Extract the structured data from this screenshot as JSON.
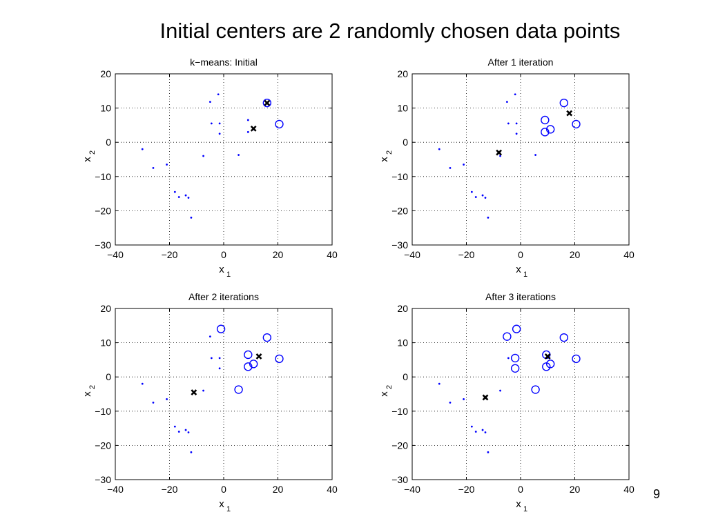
{
  "slide": {
    "title": "Initial centers are 2 randomly chosen data points",
    "page_number": "9"
  },
  "colors": {
    "points": "#0000ff",
    "centers": "#000000",
    "grid": "#000000",
    "background": "#ffffff"
  },
  "chart_data": [
    {
      "type": "scatter",
      "title": "k−means: Initial",
      "xlabel": "x",
      "xlabel_sub": "1",
      "ylabel": "x",
      "ylabel_sub": "2",
      "xlim": [
        -40,
        40
      ],
      "ylim": [
        -30,
        20
      ],
      "xticks": [
        -40,
        -20,
        0,
        20,
        40
      ],
      "yticks": [
        -30,
        -20,
        -10,
        0,
        10,
        20
      ],
      "grid": true,
      "points": [
        [
          -30,
          -2
        ],
        [
          -26,
          -7.5
        ],
        [
          -21,
          -6.5
        ],
        [
          -18,
          -14.5
        ],
        [
          -16.5,
          -16
        ],
        [
          -14,
          -15.5
        ],
        [
          -13,
          -16.2
        ],
        [
          -12,
          -22
        ],
        [
          -7.5,
          -4
        ],
        [
          -5,
          11.8
        ],
        [
          -4.5,
          5.5
        ],
        [
          -2,
          14
        ],
        [
          -1.5,
          5.5
        ],
        [
          -1.5,
          2.5
        ],
        [
          5.5,
          -3.7
        ],
        [
          9,
          6.5
        ],
        [
          9,
          3
        ],
        [
          11,
          3.8
        ]
      ],
      "circled_points": [
        [
          16,
          11.5
        ],
        [
          20.5,
          5.3
        ]
      ],
      "centers": [
        [
          16,
          11.5
        ],
        [
          11,
          4
        ]
      ]
    },
    {
      "type": "scatter",
      "title": "After 1 iteration",
      "xlabel": "x",
      "xlabel_sub": "1",
      "ylabel": "x",
      "ylabel_sub": "2",
      "xlim": [
        -40,
        40
      ],
      "ylim": [
        -30,
        20
      ],
      "xticks": [
        -40,
        -20,
        0,
        20,
        40
      ],
      "yticks": [
        -30,
        -20,
        -10,
        0,
        10,
        20
      ],
      "grid": true,
      "points": [
        [
          -30,
          -2
        ],
        [
          -26,
          -7.5
        ],
        [
          -21,
          -6.5
        ],
        [
          -18,
          -14.5
        ],
        [
          -16.5,
          -16
        ],
        [
          -14,
          -15.5
        ],
        [
          -13,
          -16.2
        ],
        [
          -12,
          -22
        ],
        [
          -7.5,
          -4
        ],
        [
          -5,
          11.8
        ],
        [
          -4.5,
          5.5
        ],
        [
          -2,
          14
        ],
        [
          -1.5,
          5.5
        ],
        [
          -1.5,
          2.5
        ],
        [
          5.5,
          -3.7
        ]
      ],
      "circled_points": [
        [
          9,
          6.5
        ],
        [
          9,
          3
        ],
        [
          11,
          3.8
        ],
        [
          16,
          11.5
        ],
        [
          20.5,
          5.3
        ]
      ],
      "centers": [
        [
          -8,
          -3
        ],
        [
          18,
          8.5
        ]
      ]
    },
    {
      "type": "scatter",
      "title": "After 2 iterations",
      "xlabel": "x",
      "xlabel_sub": "1",
      "ylabel": "x",
      "ylabel_sub": "2",
      "xlim": [
        -40,
        40
      ],
      "ylim": [
        -30,
        20
      ],
      "xticks": [
        -40,
        -20,
        0,
        20,
        40
      ],
      "yticks": [
        -30,
        -20,
        -10,
        0,
        10,
        20
      ],
      "grid": true,
      "points": [
        [
          -30,
          -2
        ],
        [
          -26,
          -7.5
        ],
        [
          -21,
          -6.5
        ],
        [
          -18,
          -14.5
        ],
        [
          -16.5,
          -16
        ],
        [
          -14,
          -15.5
        ],
        [
          -13,
          -16.2
        ],
        [
          -12,
          -22
        ],
        [
          -7.5,
          -4
        ],
        [
          -5,
          11.8
        ],
        [
          -4.5,
          5.5
        ],
        [
          -1.5,
          5.5
        ],
        [
          -1.5,
          2.5
        ]
      ],
      "circled_points": [
        [
          -1,
          14
        ],
        [
          5.5,
          -3.7
        ],
        [
          9,
          6.5
        ],
        [
          9,
          3
        ],
        [
          11,
          3.8
        ],
        [
          16,
          11.5
        ],
        [
          20.5,
          5.3
        ]
      ],
      "centers": [
        [
          -11,
          -4.5
        ],
        [
          13,
          6
        ]
      ]
    },
    {
      "type": "scatter",
      "title": "After 3 iterations",
      "xlabel": "x",
      "xlabel_sub": "1",
      "ylabel": "x",
      "ylabel_sub": "2",
      "xlim": [
        -40,
        40
      ],
      "ylim": [
        -30,
        20
      ],
      "xticks": [
        -40,
        -20,
        0,
        20,
        40
      ],
      "yticks": [
        -30,
        -20,
        -10,
        0,
        10,
        20
      ],
      "grid": true,
      "points": [
        [
          -30,
          -2
        ],
        [
          -26,
          -7.5
        ],
        [
          -21,
          -6.5
        ],
        [
          -18,
          -14.5
        ],
        [
          -16.5,
          -16
        ],
        [
          -14,
          -15.5
        ],
        [
          -13,
          -16.2
        ],
        [
          -12,
          -22
        ],
        [
          -7.5,
          -4
        ],
        [
          -4.5,
          5.5
        ]
      ],
      "circled_points": [
        [
          -5,
          11.8
        ],
        [
          -1.5,
          14
        ],
        [
          -2,
          5.5
        ],
        [
          -2,
          2.5
        ],
        [
          5.5,
          -3.7
        ],
        [
          9.5,
          6.5
        ],
        [
          9.5,
          3
        ],
        [
          11,
          3.8
        ],
        [
          16,
          11.5
        ],
        [
          20.5,
          5.3
        ]
      ],
      "centers": [
        [
          -13,
          -6
        ],
        [
          10,
          6
        ]
      ]
    }
  ]
}
